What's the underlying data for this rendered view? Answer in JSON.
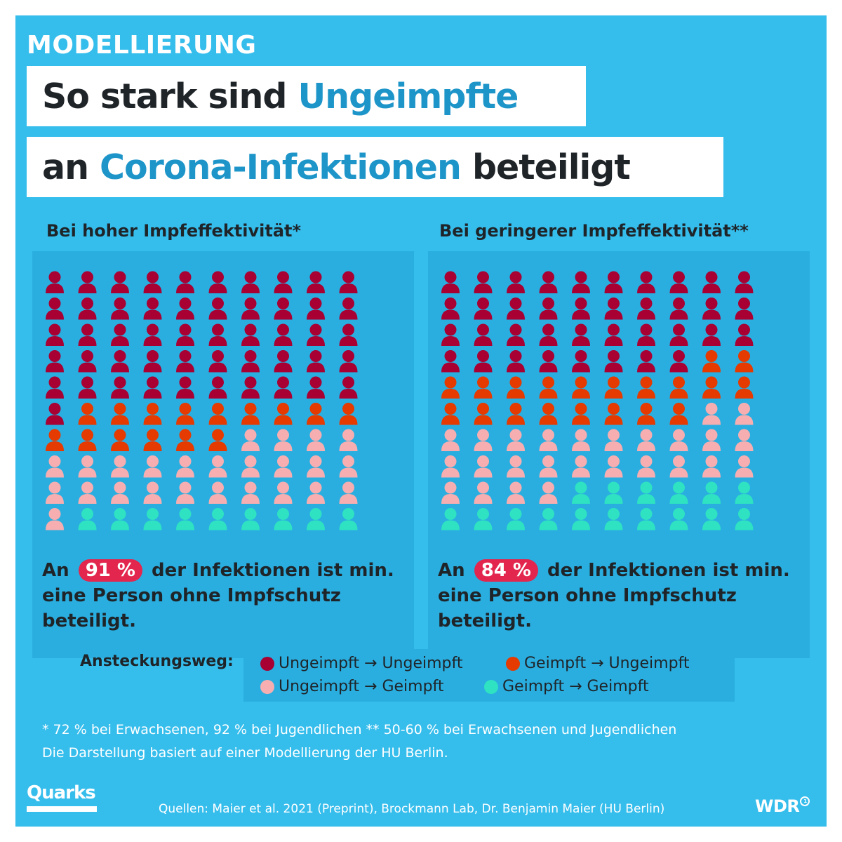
{
  "kicker": "MODELLIERUNG",
  "title": {
    "line1": [
      {
        "text": "So stark sind ",
        "style": "dark"
      },
      {
        "text": "Ungeimpfte",
        "style": "blue"
      }
    ],
    "line2": [
      {
        "text": "an ",
        "style": "dark"
      },
      {
        "text": "Corona-Infektionen",
        "style": "blue"
      },
      {
        "text": " beteiligt",
        "style": "dark"
      }
    ]
  },
  "colors": {
    "background": "#35bdec",
    "panel": "#2aaee0",
    "title_dark": "#1f2428",
    "title_blue": "#1d95c9",
    "badge": "#e3264e",
    "ungeimpft_ungeimpft": "#a80032",
    "geimpft_ungeimpft": "#e53a00",
    "ungeimpft_geimpft": "#f7aeb0",
    "geimpft_geimpft": "#2ee2c2"
  },
  "chart_data": [
    {
      "type": "pictogram",
      "title": "Bei hoher Impfeffektivität*",
      "total_icons": 100,
      "counts": [
        51,
        15,
        25,
        9
      ],
      "categories": [
        "Ungeimpft → Ungeimpft",
        "Geimpft → Ungeimpft",
        "Ungeimpft → Geimpft",
        "Geimpft → Geimpft"
      ],
      "highlight_percent": "91 %",
      "text_before": "An ",
      "text_after": " der Infektionen ist min. eine Person ohne Impfschutz beteiligt."
    },
    {
      "type": "pictogram",
      "title": "Bei geringerer Impfeffektivität**",
      "total_icons": 100,
      "counts": [
        38,
        20,
        26,
        16
      ],
      "categories": [
        "Ungeimpft → Ungeimpft",
        "Geimpft → Ungeimpft",
        "Ungeimpft → Geimpft",
        "Geimpft → Geimpft"
      ],
      "highlight_percent": "84 %",
      "text_before": "An ",
      "text_after": " der Infektionen ist min. eine Person ohne Impfschutz beteiligt."
    }
  ],
  "legend": {
    "label": "Ansteckungsweg:",
    "items": [
      {
        "label": "Ungeimpft → Ungeimpft",
        "color": "#a80032"
      },
      {
        "label": "Geimpft → Ungeimpft",
        "color": "#e53a00"
      },
      {
        "label": "Ungeimpft → Geimpft",
        "color": "#f7aeb0"
      },
      {
        "label": "Geimpft → Geimpft",
        "color": "#2ee2c2"
      }
    ]
  },
  "footnotes": {
    "line1": "* 72 % bei Erwachsenen, 92 % bei Jugendlichen  ** 50-60 % bei Erwachsenen und Jugendlichen",
    "line2": "Die Darstellung basiert auf einer Modellierung der HU Berlin."
  },
  "logos": {
    "quarks": "Quarks",
    "wdr": "WDR",
    "wdr_mark": "1"
  },
  "sources": "Quellen: Maier et al. 2021 (Preprint), Brockmann Lab, Dr. Benjamin Maier (HU Berlin)"
}
